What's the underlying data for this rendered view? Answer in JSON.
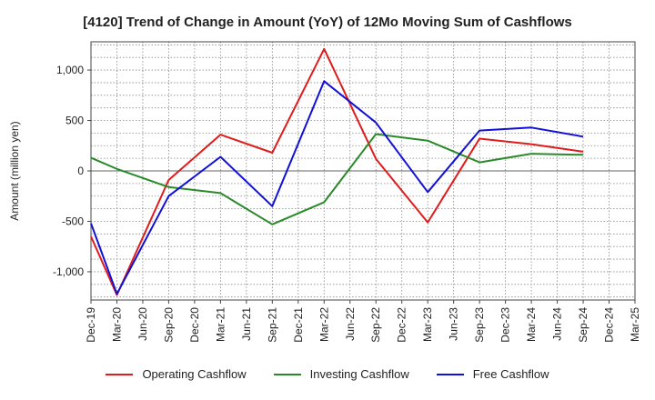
{
  "chart_data": {
    "type": "line",
    "title": "[4120]  Trend of Change in Amount (YoY) of 12Mo Moving Sum of Cashflows",
    "xlabel": "",
    "ylabel": "Amount (million yen)",
    "ylim": [
      -1280,
      1280
    ],
    "yticks": [
      -1000,
      -500,
      0,
      500,
      1000
    ],
    "ytick_labels": [
      "-1,000",
      "-500",
      "0",
      "500",
      "1,000"
    ],
    "categories": [
      "Dec-19",
      "Mar-20",
      "Jun-20",
      "Sep-20",
      "Dec-20",
      "Mar-21",
      "Jun-21",
      "Sep-21",
      "Dec-21",
      "Mar-22",
      "Jun-22",
      "Sep-22",
      "Dec-22",
      "Mar-23",
      "Jun-23",
      "Sep-23",
      "Dec-23",
      "Mar-24",
      "Jun-24",
      "Sep-24",
      "Dec-24",
      "Mar-25"
    ],
    "grid": true,
    "legend_position": "bottom",
    "series": [
      {
        "name": "Operating Cashflow",
        "color": "#e01b1b",
        "values": [
          -650,
          -1230,
          null,
          -90,
          null,
          360,
          null,
          180,
          null,
          1210,
          null,
          120,
          null,
          -510,
          null,
          320,
          null,
          265,
          null,
          190,
          null,
          null
        ]
      },
      {
        "name": "Investing Cashflow",
        "color": "#2a8a2a",
        "values": [
          130,
          20,
          null,
          -160,
          null,
          -220,
          null,
          -530,
          null,
          -310,
          null,
          365,
          null,
          300,
          null,
          85,
          null,
          170,
          null,
          160,
          null,
          null
        ]
      },
      {
        "name": "Free Cashflow",
        "color": "#1010d8",
        "values": [
          -520,
          -1220,
          null,
          -250,
          null,
          140,
          null,
          -350,
          null,
          890,
          null,
          480,
          null,
          -210,
          null,
          400,
          null,
          430,
          null,
          340,
          null,
          null
        ]
      }
    ]
  }
}
